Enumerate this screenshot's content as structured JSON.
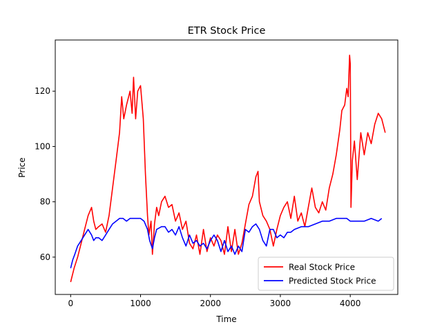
{
  "chart_data": {
    "type": "line",
    "title": "ETR Stock Price",
    "xlabel": "Time",
    "ylabel": "Price",
    "xlim": [
      -220,
      4680
    ],
    "ylim": [
      46.5,
      138.5
    ],
    "xticks": [
      0,
      1000,
      2000,
      3000,
      4000
    ],
    "yticks": [
      60,
      80,
      100,
      120
    ],
    "grid": false,
    "legend_position": "lower-right",
    "series": [
      {
        "name": "Real Stock Price",
        "color": "#ff0000",
        "x": [
          0,
          50,
          100,
          150,
          200,
          250,
          300,
          330,
          360,
          400,
          450,
          500,
          550,
          600,
          650,
          700,
          730,
          760,
          800,
          850,
          880,
          900,
          930,
          960,
          1000,
          1040,
          1070,
          1100,
          1120,
          1150,
          1170,
          1200,
          1230,
          1260,
          1300,
          1350,
          1400,
          1450,
          1500,
          1550,
          1600,
          1650,
          1700,
          1750,
          1800,
          1850,
          1900,
          1950,
          2000,
          2050,
          2100,
          2150,
          2200,
          2250,
          2300,
          2350,
          2400,
          2450,
          2500,
          2550,
          2600,
          2650,
          2680,
          2700,
          2750,
          2800,
          2850,
          2900,
          2950,
          3000,
          3050,
          3100,
          3150,
          3200,
          3250,
          3300,
          3350,
          3400,
          3450,
          3500,
          3550,
          3600,
          3650,
          3700,
          3750,
          3800,
          3850,
          3880,
          3920,
          3950,
          3970,
          3990,
          4000,
          4010,
          4030,
          4060,
          4100,
          4150,
          4200,
          4250,
          4300,
          4350,
          4400,
          4450,
          4500
        ],
        "values": [
          51,
          56,
          60,
          65,
          70,
          75,
          78,
          73,
          70,
          71,
          72,
          69,
          75,
          85,
          95,
          105,
          118,
          110,
          115,
          120,
          112,
          125,
          110,
          120,
          122,
          110,
          90,
          75,
          68,
          73,
          61,
          72,
          78,
          75,
          80,
          82,
          78,
          79,
          73,
          76,
          70,
          73,
          65,
          63,
          68,
          61,
          70,
          62,
          67,
          64,
          68,
          66,
          61,
          71,
          62,
          70,
          61,
          65,
          72,
          79,
          82,
          89,
          91,
          80,
          75,
          73,
          70,
          64,
          70,
          75,
          78,
          80,
          74,
          82,
          73,
          76,
          71,
          78,
          85,
          78,
          76,
          80,
          77,
          85,
          90,
          97,
          106,
          113,
          115,
          121,
          118,
          133,
          130,
          78,
          95,
          102,
          88,
          105,
          97,
          105,
          101,
          108,
          112,
          110,
          105
        ]
      },
      {
        "name": "Predicted Stock Price",
        "color": "#0000ff",
        "x": [
          0,
          30,
          60,
          100,
          150,
          200,
          250,
          300,
          330,
          360,
          400,
          450,
          500,
          550,
          600,
          650,
          700,
          750,
          800,
          850,
          900,
          950,
          1000,
          1050,
          1100,
          1130,
          1170,
          1200,
          1230,
          1300,
          1350,
          1400,
          1450,
          1500,
          1550,
          1600,
          1650,
          1700,
          1750,
          1800,
          1850,
          1900,
          1950,
          2000,
          2050,
          2100,
          2150,
          2200,
          2250,
          2300,
          2350,
          2400,
          2450,
          2500,
          2550,
          2600,
          2650,
          2700,
          2750,
          2800,
          2850,
          2900,
          2950,
          3000,
          3050,
          3100,
          3150,
          3200,
          3300,
          3400,
          3500,
          3600,
          3700,
          3800,
          3900,
          3950,
          4000,
          4050,
          4100,
          4150,
          4200,
          4300,
          4400,
          4450
        ],
        "values": [
          56,
          59,
          61,
          64,
          66,
          68,
          70,
          68,
          66,
          67,
          67,
          66,
          68,
          70,
          72,
          73,
          74,
          74,
          73,
          74,
          74,
          74,
          74,
          73,
          70,
          66,
          63,
          67,
          70,
          71,
          71,
          69,
          70,
          68,
          71,
          67,
          64,
          68,
          65,
          66,
          64,
          65,
          63,
          66,
          68,
          66,
          62,
          66,
          62,
          64,
          61,
          64,
          62,
          70,
          69,
          71,
          72,
          70,
          66,
          64,
          70,
          70,
          67,
          68,
          67,
          69,
          69,
          70,
          71,
          71,
          72,
          73,
          73,
          74,
          74,
          74,
          73,
          73,
          73,
          73,
          73,
          74,
          73,
          74
        ]
      }
    ]
  }
}
